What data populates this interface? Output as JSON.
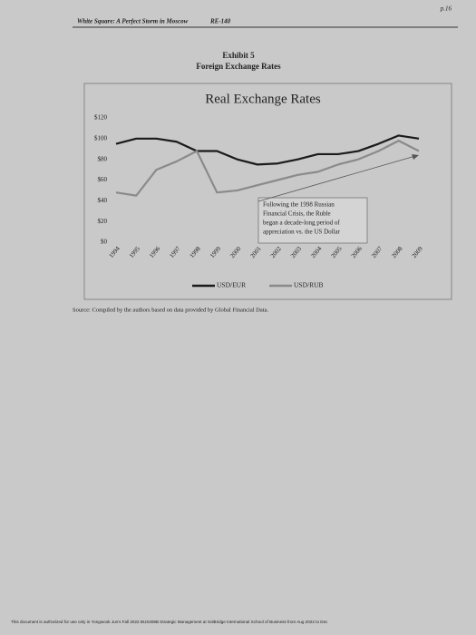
{
  "header": {
    "title": "White Square: A Perfect Storm in Moscow",
    "code": "RE-140",
    "page": "p.16"
  },
  "exhibit": {
    "number": "Exhibit 5",
    "title": "Foreign Exchange Rates"
  },
  "chart_data": {
    "type": "line",
    "title": "Real Exchange Rates",
    "categories": [
      "1994",
      "1995",
      "1996",
      "1997",
      "1998",
      "1999",
      "2000",
      "2001",
      "2002",
      "2003",
      "2004",
      "2005",
      "2006",
      "2007",
      "2008",
      "2009"
    ],
    "series": [
      {
        "name": "USD/EUR",
        "color": "#1a1a1a",
        "values": [
          95,
          100,
          100,
          97,
          88,
          88,
          80,
          75,
          76,
          80,
          85,
          85,
          88,
          95,
          103,
          100
        ]
      },
      {
        "name": "USD/RUB",
        "color": "#8a8a8a",
        "values": [
          48,
          45,
          70,
          78,
          88,
          48,
          50,
          55,
          60,
          65,
          68,
          75,
          80,
          88,
          98,
          88
        ]
      }
    ],
    "ylim": [
      0,
      120
    ],
    "yticks": [
      {
        "value": 0,
        "label": "$0"
      },
      {
        "value": 20,
        "label": "$20"
      },
      {
        "value": 40,
        "label": "$40"
      },
      {
        "value": 60,
        "label": "$60"
      },
      {
        "value": 80,
        "label": "$80"
      },
      {
        "value": 100,
        "label": "$100"
      },
      {
        "value": 120,
        "label": "$120"
      }
    ],
    "grid": false,
    "annotation": [
      "Following the 1998 Russian",
      "Financial Crisis, the Ruble",
      "began a decade-long period of",
      "appreciation vs. the US Dollar"
    ]
  },
  "source": "Source: Compiled by the authors based on data provided by Global Financial Data.",
  "footer": "This document is authorized for use only in Yongwook Jun's Fall 2022 BUS308B Strategic Management at SolBridge International School of Business from Aug 2022 to Dec"
}
